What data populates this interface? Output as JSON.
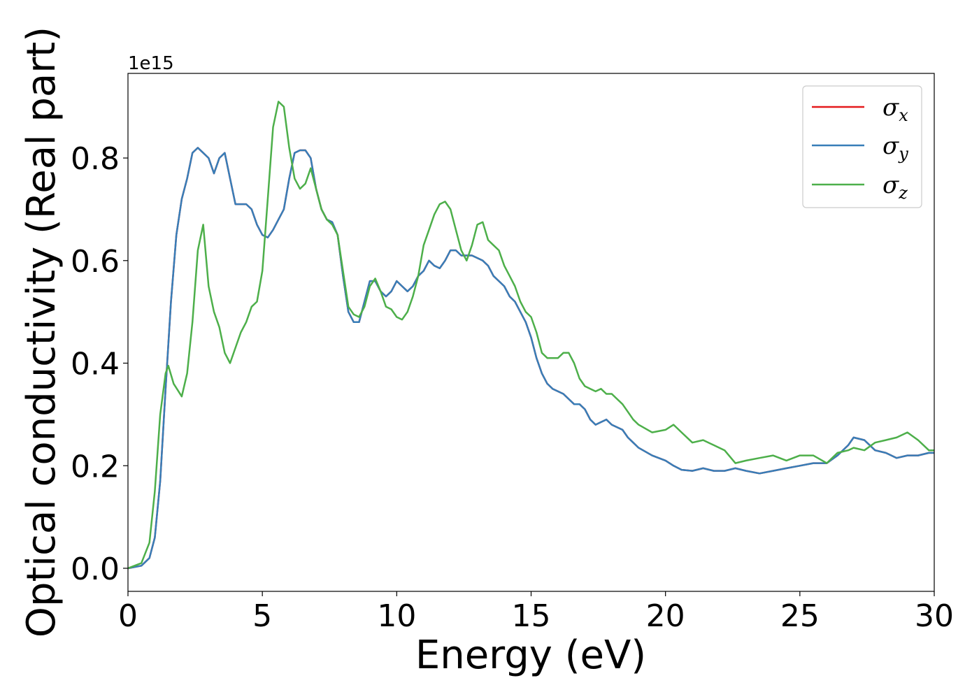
{
  "chart_data": {
    "type": "line",
    "title": "",
    "xlabel": "Energy (eV)",
    "ylabel": "Optical conductivity (Real part)",
    "y_offset_label": "1e15",
    "xlim": [
      0,
      30
    ],
    "ylim": [
      -0.045,
      0.965
    ],
    "xticks": [
      0,
      5,
      10,
      15,
      20,
      25,
      30
    ],
    "yticks": [
      0.0,
      0.2,
      0.4,
      0.6,
      0.8
    ],
    "ytick_labels": [
      "0.0",
      "0.2",
      "0.4",
      "0.6",
      "0.8"
    ],
    "grid": false,
    "legend": {
      "position": "top-right",
      "entries": [
        {
          "symbol": "σ",
          "sub": "x",
          "color": "#e41a1c"
        },
        {
          "symbol": "σ",
          "sub": "y",
          "color": "#377eb8"
        },
        {
          "symbol": "σ",
          "sub": "z",
          "color": "#4daf4a"
        }
      ]
    },
    "series": [
      {
        "color": "#e41a1c",
        "x": [
          0,
          0.5,
          0.8,
          1.0,
          1.2,
          1.4,
          1.6,
          1.8,
          2.0,
          2.2,
          2.4,
          2.6,
          2.8,
          3.0,
          3.2,
          3.4,
          3.6,
          3.8,
          4.0,
          4.2,
          4.4,
          4.6,
          4.8,
          5.0,
          5.2,
          5.4,
          5.6,
          5.8,
          6.0,
          6.2,
          6.4,
          6.6,
          6.8,
          7.0,
          7.2,
          7.4,
          7.6,
          7.8,
          8.0,
          8.2,
          8.4,
          8.6,
          8.8,
          9.0,
          9.2,
          9.4,
          9.6,
          9.8,
          10.0,
          10.2,
          10.4,
          10.6,
          10.8,
          11.0,
          11.2,
          11.4,
          11.6,
          11.8,
          12.0,
          12.2,
          12.4,
          12.6,
          12.8,
          13.0,
          13.2,
          13.4,
          13.6,
          13.8,
          14.0,
          14.2,
          14.4,
          14.6,
          14.8,
          15.0,
          15.2,
          15.4,
          15.6,
          15.8,
          16.0,
          16.2,
          16.4,
          16.6,
          16.8,
          17.0,
          17.2,
          17.4,
          17.6,
          17.8,
          18.0,
          18.2,
          18.4,
          18.6,
          18.8,
          19.0,
          19.5,
          20.0,
          20.3,
          20.6,
          21.0,
          21.4,
          21.8,
          22.2,
          22.6,
          23.0,
          23.5,
          24.0,
          24.5,
          25.0,
          25.5,
          26.0,
          26.4,
          26.8,
          27.0,
          27.4,
          27.8,
          28.2,
          28.6,
          29.0,
          29.4,
          29.8,
          30.0
        ],
        "y": [
          0.0,
          0.005,
          0.02,
          0.06,
          0.17,
          0.35,
          0.52,
          0.65,
          0.72,
          0.76,
          0.81,
          0.82,
          0.81,
          0.8,
          0.77,
          0.8,
          0.81,
          0.76,
          0.71,
          0.71,
          0.71,
          0.7,
          0.67,
          0.65,
          0.645,
          0.66,
          0.68,
          0.7,
          0.76,
          0.81,
          0.815,
          0.815,
          0.8,
          0.74,
          0.7,
          0.68,
          0.675,
          0.65,
          0.57,
          0.5,
          0.48,
          0.48,
          0.52,
          0.56,
          0.56,
          0.54,
          0.53,
          0.54,
          0.56,
          0.55,
          0.54,
          0.55,
          0.57,
          0.58,
          0.6,
          0.59,
          0.585,
          0.6,
          0.62,
          0.62,
          0.61,
          0.61,
          0.61,
          0.605,
          0.6,
          0.59,
          0.57,
          0.56,
          0.55,
          0.53,
          0.52,
          0.5,
          0.48,
          0.45,
          0.41,
          0.38,
          0.36,
          0.35,
          0.345,
          0.34,
          0.33,
          0.32,
          0.32,
          0.31,
          0.29,
          0.28,
          0.285,
          0.29,
          0.28,
          0.275,
          0.27,
          0.255,
          0.245,
          0.235,
          0.22,
          0.21,
          0.2,
          0.192,
          0.19,
          0.195,
          0.19,
          0.19,
          0.195,
          0.19,
          0.185,
          0.19,
          0.195,
          0.2,
          0.205,
          0.205,
          0.22,
          0.24,
          0.255,
          0.25,
          0.23,
          0.225,
          0.215,
          0.22,
          0.22,
          0.225,
          0.225
        ]
      },
      {
        "color": "#377eb8",
        "x": [
          0,
          0.5,
          0.8,
          1.0,
          1.2,
          1.4,
          1.6,
          1.8,
          2.0,
          2.2,
          2.4,
          2.6,
          2.8,
          3.0,
          3.2,
          3.4,
          3.6,
          3.8,
          4.0,
          4.2,
          4.4,
          4.6,
          4.8,
          5.0,
          5.2,
          5.4,
          5.6,
          5.8,
          6.0,
          6.2,
          6.4,
          6.6,
          6.8,
          7.0,
          7.2,
          7.4,
          7.6,
          7.8,
          8.0,
          8.2,
          8.4,
          8.6,
          8.8,
          9.0,
          9.2,
          9.4,
          9.6,
          9.8,
          10.0,
          10.2,
          10.4,
          10.6,
          10.8,
          11.0,
          11.2,
          11.4,
          11.6,
          11.8,
          12.0,
          12.2,
          12.4,
          12.6,
          12.8,
          13.0,
          13.2,
          13.4,
          13.6,
          13.8,
          14.0,
          14.2,
          14.4,
          14.6,
          14.8,
          15.0,
          15.2,
          15.4,
          15.6,
          15.8,
          16.0,
          16.2,
          16.4,
          16.6,
          16.8,
          17.0,
          17.2,
          17.4,
          17.6,
          17.8,
          18.0,
          18.2,
          18.4,
          18.6,
          18.8,
          19.0,
          19.5,
          20.0,
          20.3,
          20.6,
          21.0,
          21.4,
          21.8,
          22.2,
          22.6,
          23.0,
          23.5,
          24.0,
          24.5,
          25.0,
          25.5,
          26.0,
          26.4,
          26.8,
          27.0,
          27.4,
          27.8,
          28.2,
          28.6,
          29.0,
          29.4,
          29.8,
          30.0
        ],
        "y": [
          0.0,
          0.005,
          0.02,
          0.06,
          0.17,
          0.35,
          0.52,
          0.65,
          0.72,
          0.76,
          0.81,
          0.82,
          0.81,
          0.8,
          0.77,
          0.8,
          0.81,
          0.76,
          0.71,
          0.71,
          0.71,
          0.7,
          0.67,
          0.65,
          0.645,
          0.66,
          0.68,
          0.7,
          0.76,
          0.81,
          0.815,
          0.815,
          0.8,
          0.74,
          0.7,
          0.68,
          0.675,
          0.65,
          0.57,
          0.5,
          0.48,
          0.48,
          0.52,
          0.56,
          0.56,
          0.54,
          0.53,
          0.54,
          0.56,
          0.55,
          0.54,
          0.55,
          0.57,
          0.58,
          0.6,
          0.59,
          0.585,
          0.6,
          0.62,
          0.62,
          0.61,
          0.61,
          0.61,
          0.605,
          0.6,
          0.59,
          0.57,
          0.56,
          0.55,
          0.53,
          0.52,
          0.5,
          0.48,
          0.45,
          0.41,
          0.38,
          0.36,
          0.35,
          0.345,
          0.34,
          0.33,
          0.32,
          0.32,
          0.31,
          0.29,
          0.28,
          0.285,
          0.29,
          0.28,
          0.275,
          0.27,
          0.255,
          0.245,
          0.235,
          0.22,
          0.21,
          0.2,
          0.192,
          0.19,
          0.195,
          0.19,
          0.19,
          0.195,
          0.19,
          0.185,
          0.19,
          0.195,
          0.2,
          0.205,
          0.205,
          0.22,
          0.24,
          0.255,
          0.25,
          0.23,
          0.225,
          0.215,
          0.22,
          0.22,
          0.225,
          0.225
        ]
      },
      {
        "color": "#4daf4a",
        "x": [
          0,
          0.5,
          0.8,
          1.0,
          1.2,
          1.4,
          1.5,
          1.7,
          2.0,
          2.2,
          2.4,
          2.6,
          2.8,
          3.0,
          3.2,
          3.4,
          3.6,
          3.8,
          4.0,
          4.2,
          4.4,
          4.6,
          4.8,
          5.0,
          5.2,
          5.4,
          5.6,
          5.8,
          6.0,
          6.2,
          6.4,
          6.6,
          6.8,
          7.0,
          7.2,
          7.4,
          7.6,
          7.8,
          8.0,
          8.2,
          8.4,
          8.6,
          8.8,
          9.0,
          9.2,
          9.4,
          9.6,
          9.8,
          10.0,
          10.2,
          10.4,
          10.6,
          10.8,
          11.0,
          11.2,
          11.4,
          11.6,
          11.8,
          12.0,
          12.2,
          12.4,
          12.6,
          12.8,
          13.0,
          13.2,
          13.4,
          13.6,
          13.8,
          14.0,
          14.2,
          14.4,
          14.6,
          14.8,
          15.0,
          15.2,
          15.4,
          15.6,
          15.8,
          16.0,
          16.2,
          16.4,
          16.6,
          16.8,
          17.0,
          17.2,
          17.4,
          17.6,
          17.8,
          18.0,
          18.2,
          18.4,
          18.6,
          18.8,
          19.0,
          19.5,
          20.0,
          20.3,
          20.6,
          21.0,
          21.4,
          21.8,
          22.2,
          22.6,
          23.0,
          23.5,
          24.0,
          24.5,
          25.0,
          25.5,
          26.0,
          26.4,
          26.8,
          27.0,
          27.4,
          27.8,
          28.2,
          28.6,
          29.0,
          29.4,
          29.8,
          30.0
        ],
        "y": [
          0.0,
          0.01,
          0.05,
          0.15,
          0.3,
          0.38,
          0.395,
          0.36,
          0.335,
          0.38,
          0.48,
          0.62,
          0.67,
          0.55,
          0.5,
          0.47,
          0.42,
          0.4,
          0.43,
          0.46,
          0.48,
          0.51,
          0.52,
          0.58,
          0.72,
          0.86,
          0.91,
          0.9,
          0.82,
          0.76,
          0.74,
          0.75,
          0.78,
          0.74,
          0.7,
          0.68,
          0.67,
          0.65,
          0.58,
          0.51,
          0.495,
          0.49,
          0.51,
          0.55,
          0.565,
          0.54,
          0.51,
          0.505,
          0.49,
          0.485,
          0.5,
          0.53,
          0.57,
          0.63,
          0.66,
          0.69,
          0.71,
          0.715,
          0.7,
          0.66,
          0.62,
          0.6,
          0.63,
          0.67,
          0.675,
          0.64,
          0.63,
          0.62,
          0.59,
          0.57,
          0.55,
          0.52,
          0.5,
          0.49,
          0.46,
          0.42,
          0.41,
          0.41,
          0.41,
          0.42,
          0.42,
          0.4,
          0.37,
          0.355,
          0.35,
          0.345,
          0.35,
          0.34,
          0.34,
          0.33,
          0.32,
          0.305,
          0.29,
          0.28,
          0.265,
          0.27,
          0.28,
          0.265,
          0.245,
          0.25,
          0.24,
          0.23,
          0.205,
          0.21,
          0.215,
          0.22,
          0.21,
          0.22,
          0.22,
          0.205,
          0.225,
          0.23,
          0.235,
          0.23,
          0.245,
          0.25,
          0.255,
          0.265,
          0.25,
          0.23,
          0.23
        ]
      }
    ]
  }
}
